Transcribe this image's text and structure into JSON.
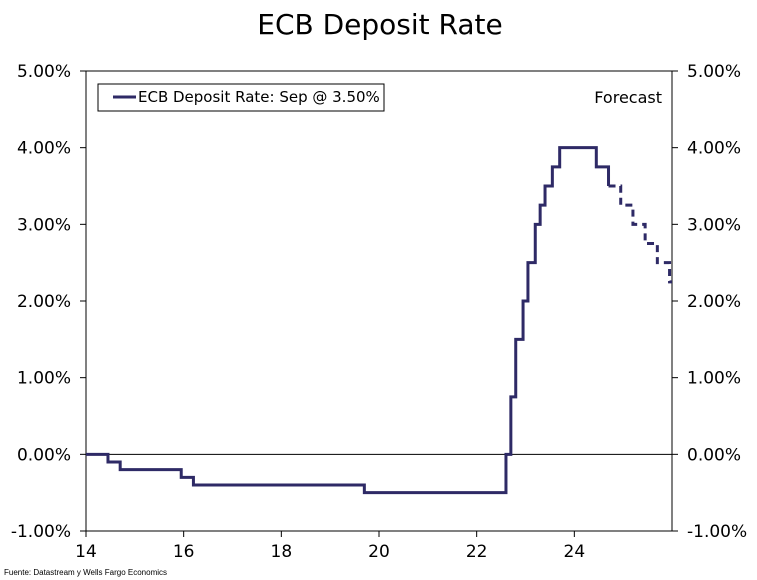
{
  "chart_data": {
    "type": "line",
    "title": "ECB Deposit Rate",
    "forecast_label": "Forecast",
    "source": "Fuente: Datastream y Wells Fargo Economics",
    "xlim": [
      14,
      26
    ],
    "ylim": [
      -1.0,
      5.0
    ],
    "x_ticks": [
      14,
      16,
      18,
      20,
      22,
      24
    ],
    "y_ticks": [
      -1,
      0,
      1,
      2,
      3,
      4,
      5
    ],
    "y_tick_labels": [
      "-1.00%",
      "0.00%",
      "1.00%",
      "2.00%",
      "3.00%",
      "4.00%",
      "5.00%"
    ],
    "legend_position": "top-left",
    "series": [
      {
        "name": "ECB Deposit Rate: Sep @ 3.50%",
        "color": "#2e2a66",
        "step": true,
        "actual": {
          "x": [
            14.0,
            14.45,
            14.7,
            15.95,
            16.2,
            19.7,
            22.6,
            22.7,
            22.8,
            22.95,
            23.05,
            23.2,
            23.3,
            23.4,
            23.55,
            23.7,
            24.45,
            24.7
          ],
          "y": [
            0.0,
            -0.1,
            -0.2,
            -0.3,
            -0.4,
            -0.5,
            0.0,
            0.75,
            1.5,
            2.0,
            2.5,
            3.0,
            3.25,
            3.5,
            3.75,
            4.0,
            3.75,
            3.5
          ]
        },
        "forecast": {
          "x": [
            24.7,
            24.95,
            25.2,
            25.45,
            25.7,
            25.95
          ],
          "y": [
            3.5,
            3.25,
            3.0,
            2.75,
            2.5,
            2.25
          ]
        }
      }
    ]
  }
}
